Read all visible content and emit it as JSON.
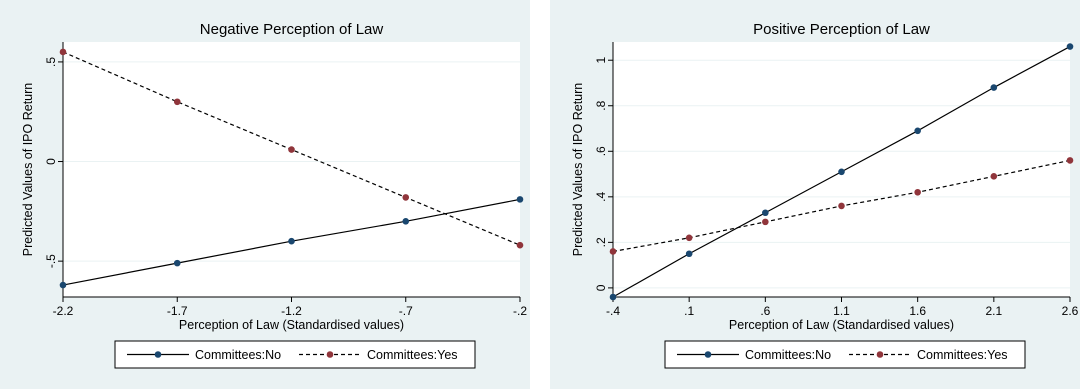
{
  "chart_data": [
    {
      "type": "line",
      "title": "Negative Perception of Law",
      "xlabel": "Perception of Law (Standardised values)",
      "ylabel": "Predicted Values of IPO Return",
      "x": [
        -2.2,
        -1.7,
        -1.2,
        -0.7,
        -0.2
      ],
      "xticks": [
        "-2.2",
        "-1.7",
        "-1.2",
        "-.7",
        "-.2"
      ],
      "yticks": [
        {
          "value": 0.5,
          "label": ".5"
        },
        {
          "value": 0,
          "label": "0"
        },
        {
          "value": -0.5,
          "label": "-.5"
        }
      ],
      "xlim": [
        -2.2,
        -0.2
      ],
      "ylim": [
        -0.68,
        0.6
      ],
      "grid": "horizontal",
      "legend_position": "bottom",
      "series": [
        {
          "name": "Committees:No",
          "style": "solid",
          "color": "#1a476f",
          "values": [
            -0.62,
            -0.51,
            -0.4,
            -0.3,
            -0.19
          ]
        },
        {
          "name": "Committees:Yes",
          "style": "dashed",
          "color": "#90353b",
          "values": [
            0.55,
            0.3,
            0.06,
            -0.18,
            -0.42
          ]
        }
      ]
    },
    {
      "type": "line",
      "title": "Positive Perception of Law",
      "xlabel": "Perception of Law (Standardised values)",
      "ylabel": "Predicted Values of IPO Return",
      "x": [
        -0.4,
        0.1,
        0.6,
        1.1,
        1.6,
        2.1,
        2.6
      ],
      "xticks": [
        "-.4",
        ".1",
        ".6",
        "1.1",
        "1.6",
        "2.1",
        "2.6"
      ],
      "yticks": [
        {
          "value": 0,
          "label": "0"
        },
        {
          "value": 0.2,
          "label": ".2"
        },
        {
          "value": 0.4,
          "label": ".4"
        },
        {
          "value": 0.6,
          "label": ".6"
        },
        {
          "value": 0.8,
          "label": ".8"
        },
        {
          "value": 1,
          "label": "1"
        }
      ],
      "xlim": [
        -0.4,
        2.6
      ],
      "ylim": [
        -0.04,
        1.08
      ],
      "grid": "horizontal",
      "legend_position": "bottom",
      "series": [
        {
          "name": "Committees:No",
          "style": "solid",
          "color": "#1a476f",
          "values": [
            -0.04,
            0.15,
            0.33,
            0.51,
            0.69,
            0.88,
            1.06
          ]
        },
        {
          "name": "Committees:Yes",
          "style": "dashed",
          "color": "#90353b",
          "values": [
            0.16,
            0.22,
            0.29,
            0.36,
            0.42,
            0.49,
            0.56
          ]
        }
      ]
    }
  ],
  "colors": {
    "outer_background": "#eaf2f3",
    "plot_background": "#ffffff",
    "grid": "#eaf2f3"
  }
}
